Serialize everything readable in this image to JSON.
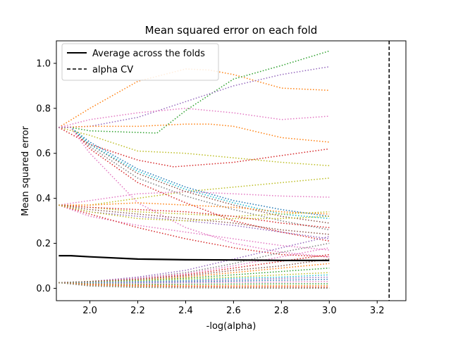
{
  "chart_data": {
    "type": "line",
    "title": "Mean squared error on each fold",
    "xlabel": "-log(alpha)",
    "ylabel": "Mean squared error",
    "xlim": [
      1.86,
      3.32
    ],
    "ylim": [
      -0.055,
      1.1
    ],
    "xticks": [
      "2.0",
      "2.2",
      "2.4",
      "2.6",
      "2.8",
      "3.0",
      "3.2"
    ],
    "yticks": [
      "0.0",
      "0.2",
      "0.4",
      "0.6",
      "0.8",
      "1.0"
    ],
    "grid": false,
    "legend": {
      "placement": "top-left",
      "entries": [
        "Average across the folds",
        "alpha CV"
      ]
    },
    "average": {
      "name": "Average across the folds",
      "color": "#000000",
      "x": [
        1.87,
        1.92,
        2.0,
        2.2,
        2.4,
        2.6,
        2.8,
        3.0
      ],
      "y": [
        0.145,
        0.145,
        0.14,
        0.13,
        0.127,
        0.126,
        0.124,
        0.124
      ]
    },
    "alpha_cv": {
      "name": "alpha CV",
      "x": 3.25,
      "color": "#000000"
    },
    "folds": [
      {
        "color": "#ff7f0e",
        "x": [
          1.87,
          2.0,
          2.2,
          2.4,
          2.5,
          2.6,
          2.8,
          3.0
        ],
        "y": [
          0.715,
          0.8,
          0.92,
          0.975,
          0.97,
          0.95,
          0.89,
          0.88
        ]
      },
      {
        "color": "#2ca02c",
        "x": [
          1.87,
          1.92,
          2.0,
          2.28,
          2.4,
          2.6,
          2.8,
          3.0
        ],
        "y": [
          0.715,
          0.715,
          0.7,
          0.69,
          0.79,
          0.93,
          0.99,
          1.055
        ]
      },
      {
        "color": "#9467bd",
        "x": [
          1.87,
          2.0,
          2.2,
          2.4,
          2.6,
          2.8,
          3.0
        ],
        "y": [
          0.715,
          0.72,
          0.76,
          0.83,
          0.9,
          0.95,
          0.985
        ]
      },
      {
        "color": "#e377c2",
        "x": [
          1.87,
          2.0,
          2.2,
          2.4,
          2.6,
          2.8,
          3.0
        ],
        "y": [
          0.715,
          0.75,
          0.78,
          0.8,
          0.78,
          0.75,
          0.765
        ]
      },
      {
        "color": "#ff7f0e",
        "x": [
          1.87,
          2.0,
          2.2,
          2.4,
          2.5,
          2.6,
          2.8,
          3.0
        ],
        "y": [
          0.715,
          0.72,
          0.72,
          0.73,
          0.73,
          0.72,
          0.67,
          0.65
        ]
      },
      {
        "color": "#bcbd22",
        "x": [
          1.87,
          2.0,
          2.2,
          2.4,
          2.6,
          2.8,
          3.0
        ],
        "y": [
          0.715,
          0.68,
          0.61,
          0.6,
          0.58,
          0.56,
          0.545
        ]
      },
      {
        "color": "#d62728",
        "x": [
          1.87,
          2.0,
          2.2,
          2.35,
          2.6,
          2.8,
          3.0
        ],
        "y": [
          0.715,
          0.64,
          0.57,
          0.54,
          0.56,
          0.59,
          0.62
        ]
      },
      {
        "color": "#bcbd22",
        "x": [
          1.87,
          2.0,
          2.2,
          2.4,
          2.6,
          2.8,
          3.0
        ],
        "y": [
          0.37,
          0.37,
          0.4,
          0.43,
          0.45,
          0.47,
          0.49
        ]
      },
      {
        "color": "#e377c2",
        "x": [
          1.87,
          2.0,
          2.2,
          2.4,
          2.6,
          2.8,
          3.0
        ],
        "y": [
          0.37,
          0.39,
          0.42,
          0.43,
          0.42,
          0.41,
          0.405
        ]
      },
      {
        "color": "#1f77b4",
        "x": [
          1.87,
          1.92,
          2.0,
          2.2,
          2.4,
          2.6,
          2.8,
          3.0
        ],
        "y": [
          0.715,
          0.715,
          0.65,
          0.53,
          0.45,
          0.39,
          0.35,
          0.32
        ]
      },
      {
        "color": "#8c564b",
        "x": [
          1.87,
          1.92,
          2.0,
          2.2,
          2.4,
          2.6,
          2.8,
          3.0
        ],
        "y": [
          0.715,
          0.715,
          0.64,
          0.51,
          0.43,
          0.37,
          0.32,
          0.29
        ]
      },
      {
        "color": "#7f7f7f",
        "x": [
          1.87,
          1.92,
          2.0,
          2.2,
          2.4,
          2.6,
          2.8,
          3.0
        ],
        "y": [
          0.715,
          0.715,
          0.63,
          0.49,
          0.41,
          0.35,
          0.3,
          0.26
        ]
      },
      {
        "color": "#d62728",
        "x": [
          1.87,
          1.92,
          2.0,
          2.2,
          2.4,
          2.6,
          2.8,
          3.0
        ],
        "y": [
          0.715,
          0.715,
          0.62,
          0.47,
          0.38,
          0.3,
          0.25,
          0.21
        ]
      },
      {
        "color": "#17becf",
        "x": [
          1.87,
          1.92,
          2.0,
          2.2,
          2.4,
          2.6,
          2.8,
          3.0
        ],
        "y": [
          0.715,
          0.715,
          0.64,
          0.52,
          0.44,
          0.38,
          0.33,
          0.31
        ]
      },
      {
        "color": "#e377c2",
        "x": [
          1.87,
          1.92,
          2.0,
          2.2,
          2.4,
          2.6,
          2.8,
          3.0
        ],
        "y": [
          0.715,
          0.715,
          0.6,
          0.38,
          0.27,
          0.2,
          0.16,
          0.14
        ]
      },
      {
        "color": "#ff7f0e",
        "x": [
          1.87,
          2.0,
          2.2,
          2.4,
          2.6,
          2.8,
          3.0
        ],
        "y": [
          0.37,
          0.37,
          0.38,
          0.37,
          0.36,
          0.34,
          0.33
        ]
      },
      {
        "color": "#bcbd22",
        "x": [
          1.87,
          2.0,
          2.2,
          2.4,
          2.6,
          2.8,
          3.0
        ],
        "y": [
          0.37,
          0.36,
          0.34,
          0.33,
          0.32,
          0.33,
          0.34
        ]
      },
      {
        "color": "#d62728",
        "x": [
          1.87,
          2.0,
          2.2,
          2.4,
          2.6,
          2.8,
          3.0
        ],
        "y": [
          0.37,
          0.36,
          0.35,
          0.34,
          0.32,
          0.29,
          0.27
        ]
      },
      {
        "color": "#8c564b",
        "x": [
          1.87,
          2.0,
          2.2,
          2.4,
          2.6,
          2.8,
          3.0
        ],
        "y": [
          0.37,
          0.35,
          0.33,
          0.31,
          0.29,
          0.26,
          0.24
        ]
      },
      {
        "color": "#9467bd",
        "x": [
          1.87,
          2.0,
          2.2,
          2.4,
          2.6,
          2.8,
          3.0
        ],
        "y": [
          0.37,
          0.34,
          0.32,
          0.3,
          0.28,
          0.25,
          0.22
        ]
      },
      {
        "color": "#e377c2",
        "x": [
          1.87,
          2.0,
          2.2,
          2.4,
          2.6,
          2.8,
          3.0
        ],
        "y": [
          0.37,
          0.32,
          0.28,
          0.25,
          0.22,
          0.19,
          0.17
        ]
      },
      {
        "color": "#d62728",
        "x": [
          1.87,
          2.0,
          2.2,
          2.4,
          2.6,
          2.8,
          3.0
        ],
        "y": [
          0.37,
          0.33,
          0.27,
          0.22,
          0.18,
          0.15,
          0.14
        ]
      },
      {
        "color": "#bcbd22",
        "x": [
          1.87,
          2.0,
          2.2,
          2.4,
          2.6,
          2.8,
          3.0
        ],
        "y": [
          0.37,
          0.34,
          0.31,
          0.3,
          0.31,
          0.31,
          0.32
        ]
      },
      {
        "color": "#9467bd",
        "x": [
          1.87,
          2.0,
          2.2,
          2.4,
          2.6,
          2.8,
          3.0
        ],
        "y": [
          0.025,
          0.03,
          0.05,
          0.08,
          0.13,
          0.18,
          0.23
        ]
      },
      {
        "color": "#7f7f7f",
        "x": [
          1.87,
          2.0,
          2.2,
          2.4,
          2.6,
          2.8,
          3.0
        ],
        "y": [
          0.025,
          0.03,
          0.045,
          0.07,
          0.11,
          0.16,
          0.2
        ]
      },
      {
        "color": "#e377c2",
        "x": [
          1.87,
          2.0,
          2.2,
          2.4,
          2.6,
          2.8,
          3.0
        ],
        "y": [
          0.025,
          0.03,
          0.045,
          0.065,
          0.1,
          0.14,
          0.18
        ]
      },
      {
        "color": "#d62728",
        "x": [
          1.87,
          2.0,
          2.2,
          2.4,
          2.6,
          2.8,
          3.0
        ],
        "y": [
          0.025,
          0.03,
          0.04,
          0.06,
          0.09,
          0.12,
          0.15
        ]
      },
      {
        "color": "#8c564b",
        "x": [
          1.87,
          2.0,
          2.2,
          2.4,
          2.6,
          2.8,
          3.0
        ],
        "y": [
          0.025,
          0.03,
          0.04,
          0.055,
          0.08,
          0.1,
          0.13
        ]
      },
      {
        "color": "#ff7f0e",
        "x": [
          1.87,
          2.0,
          2.2,
          2.4,
          2.6,
          2.8,
          3.0
        ],
        "y": [
          0.025,
          0.028,
          0.035,
          0.05,
          0.07,
          0.09,
          0.11
        ]
      },
      {
        "color": "#2ca02c",
        "x": [
          1.87,
          2.0,
          2.2,
          2.4,
          2.6,
          2.8,
          3.0
        ],
        "y": [
          0.025,
          0.028,
          0.034,
          0.045,
          0.06,
          0.075,
          0.09
        ]
      },
      {
        "color": "#bcbd22",
        "x": [
          1.87,
          2.0,
          2.2,
          2.4,
          2.6,
          2.8,
          3.0
        ],
        "y": [
          0.025,
          0.027,
          0.032,
          0.04,
          0.05,
          0.06,
          0.07
        ]
      },
      {
        "color": "#17becf",
        "x": [
          1.87,
          2.0,
          2.2,
          2.4,
          2.6,
          2.8,
          3.0
        ],
        "y": [
          0.025,
          0.026,
          0.03,
          0.035,
          0.045,
          0.05,
          0.06
        ]
      },
      {
        "color": "#9467bd",
        "x": [
          1.87,
          2.0,
          2.2,
          2.4,
          2.6,
          2.8,
          3.0
        ],
        "y": [
          0.025,
          0.025,
          0.028,
          0.032,
          0.038,
          0.044,
          0.05
        ]
      },
      {
        "color": "#1f77b4",
        "x": [
          1.87,
          2.0,
          2.2,
          2.4,
          2.6,
          2.8,
          3.0
        ],
        "y": [
          0.025,
          0.024,
          0.025,
          0.028,
          0.032,
          0.036,
          0.04
        ]
      },
      {
        "color": "#e377c2",
        "x": [
          1.87,
          2.0,
          2.2,
          2.4,
          2.6,
          2.8,
          3.0
        ],
        "y": [
          0.025,
          0.022,
          0.022,
          0.024,
          0.026,
          0.028,
          0.03
        ]
      },
      {
        "color": "#2ca02c",
        "x": [
          1.87,
          2.0,
          2.2,
          2.4,
          2.6,
          2.8,
          3.0
        ],
        "y": [
          0.025,
          0.02,
          0.018,
          0.018,
          0.019,
          0.02,
          0.02
        ]
      },
      {
        "color": "#ff7f0e",
        "x": [
          1.87,
          2.0,
          2.2,
          2.4,
          2.6,
          2.8,
          3.0
        ],
        "y": [
          0.025,
          0.018,
          0.014,
          0.012,
          0.012,
          0.012,
          0.012
        ]
      },
      {
        "color": "#d62728",
        "x": [
          1.87,
          2.0,
          2.2,
          2.4,
          2.6,
          2.8,
          3.0
        ],
        "y": [
          0.025,
          0.015,
          0.01,
          0.008,
          0.006,
          0.006,
          0.005
        ]
      },
      {
        "color": "#bcbd22",
        "x": [
          1.87,
          2.0,
          2.2,
          2.4,
          2.6,
          2.8,
          3.0
        ],
        "y": [
          0.025,
          0.012,
          0.006,
          0.003,
          0.002,
          0.001,
          0.001
        ]
      },
      {
        "color": "#7f7f7f",
        "x": [
          1.87,
          2.0,
          2.2,
          2.4,
          2.6,
          2.8,
          3.0
        ],
        "y": [
          0.025,
          0.01,
          0.004,
          0.002,
          0.001,
          0.0,
          0.0
        ]
      }
    ]
  }
}
